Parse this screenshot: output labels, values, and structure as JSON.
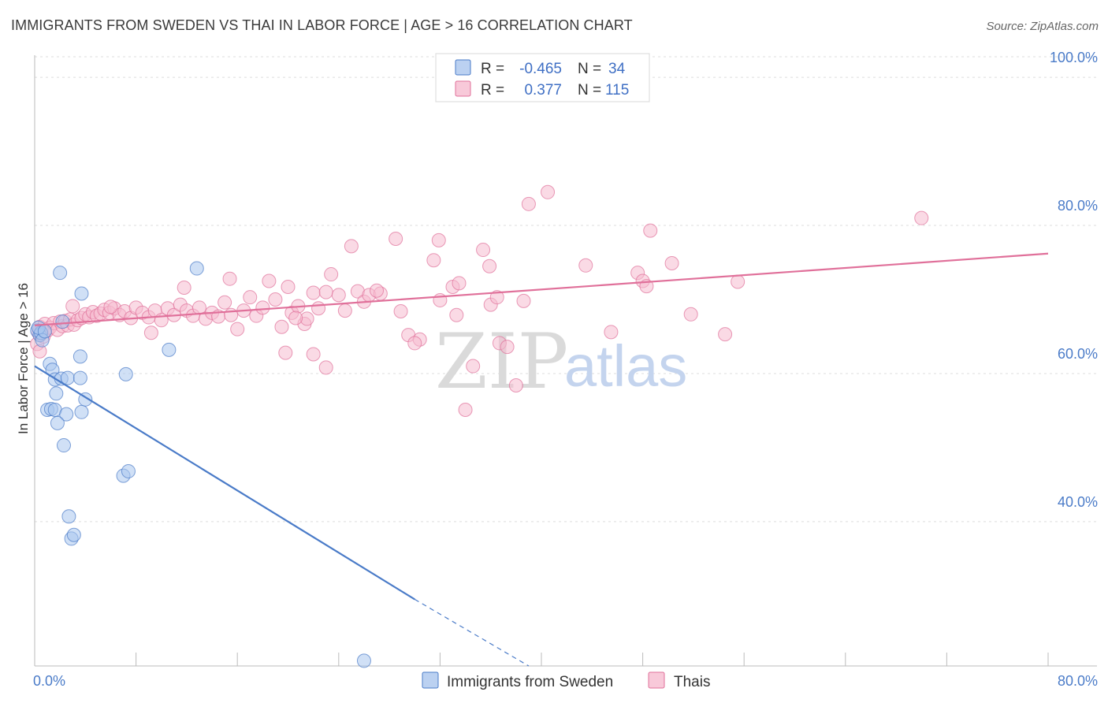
{
  "title": "IMMIGRANTS FROM SWEDEN VS THAI IN LABOR FORCE | AGE > 16 CORRELATION CHART",
  "source": "Source: ZipAtlas.com",
  "watermark": {
    "zip": "ZIP",
    "atlas": "atlas"
  },
  "colors": {
    "sweden": "#4a7bc8",
    "thai": "#e0709a",
    "sweden_fill": "#aac6ee",
    "thai_fill": "#f6bcd0",
    "tick": "#4a7bc8"
  },
  "chart_data": {
    "type": "scatter",
    "xlabel": "",
    "ylabel": "In Labor Force | Age > 16",
    "xlim": [
      0,
      80
    ],
    "ylim": [
      20.5,
      103
    ],
    "x_ticks": [
      0,
      8,
      16,
      24,
      32,
      40,
      48,
      56,
      64,
      72,
      80
    ],
    "x_tick_labels": {
      "first": "0.0%",
      "last": "80.0%"
    },
    "y_ticks": [
      {
        "value": 40,
        "label": "40.0%"
      },
      {
        "value": 60,
        "label": "60.0%"
      },
      {
        "value": 80,
        "label": "80.0%"
      },
      {
        "value": 100,
        "label": "100.0%"
      }
    ],
    "grid": true,
    "legend_position": "top-center",
    "legend": [
      {
        "r_label": "R =",
        "r_value": "-0.465",
        "n_label": "N =",
        "n_value": "34"
      },
      {
        "r_label": "R =",
        "r_value": "0.377",
        "n_label": "N =",
        "n_value": "115"
      }
    ],
    "series": [
      {
        "name": "Immigrants from Sweden",
        "color": "#4a7bc8",
        "trend": {
          "x0": 0,
          "y0": 61,
          "x1": 30,
          "y1": 29.5,
          "dash_x1": 39,
          "dash_y1": 20.5
        },
        "points": [
          [
            0.2,
            65.8
          ],
          [
            0.4,
            65.2
          ],
          [
            0.5,
            65.5
          ],
          [
            0.6,
            64.5
          ],
          [
            0.3,
            66.2
          ],
          [
            0.8,
            65.7
          ],
          [
            1.2,
            61.3
          ],
          [
            1.4,
            60.5
          ],
          [
            1.7,
            57.3
          ],
          [
            1.6,
            59.2
          ],
          [
            2.1,
            59.3
          ],
          [
            1.0,
            55.1
          ],
          [
            1.3,
            55.2
          ],
          [
            1.6,
            55.1
          ],
          [
            2.5,
            54.5
          ],
          [
            3.7,
            54.8
          ],
          [
            2.6,
            59.4
          ],
          [
            4.0,
            56.5
          ],
          [
            3.6,
            62.3
          ],
          [
            3.6,
            59.4
          ],
          [
            3.7,
            70.8
          ],
          [
            2.0,
            73.6
          ],
          [
            12.8,
            74.2
          ],
          [
            2.2,
            67.0
          ],
          [
            1.8,
            53.3
          ],
          [
            2.3,
            50.3
          ],
          [
            7.2,
            59.9
          ],
          [
            10.6,
            63.2
          ],
          [
            7.0,
            46.2
          ],
          [
            7.4,
            46.8
          ],
          [
            2.7,
            40.7
          ],
          [
            2.9,
            37.7
          ],
          [
            3.1,
            38.2
          ],
          [
            26.0,
            21.2
          ]
        ]
      },
      {
        "name": "Thais",
        "color": "#e0709a",
        "trend": {
          "x0": 0,
          "y0": 66.5,
          "x1": 80,
          "y1": 76.2
        },
        "points": [
          [
            0.2,
            64.0
          ],
          [
            0.3,
            65.5
          ],
          [
            0.4,
            66.3
          ],
          [
            0.5,
            65.3
          ],
          [
            0.6,
            66.0
          ],
          [
            0.7,
            65.0
          ],
          [
            0.8,
            66.7
          ],
          [
            1.0,
            65.8
          ],
          [
            1.2,
            66.2
          ],
          [
            1.5,
            66.8
          ],
          [
            1.8,
            65.9
          ],
          [
            2.0,
            67.0
          ],
          [
            2.2,
            66.4
          ],
          [
            2.4,
            67.1
          ],
          [
            2.6,
            66.5
          ],
          [
            2.8,
            67.3
          ],
          [
            3.1,
            66.6
          ],
          [
            3.4,
            67.2
          ],
          [
            3.7,
            67.5
          ],
          [
            4.0,
            68.0
          ],
          [
            4.3,
            67.6
          ],
          [
            4.6,
            68.3
          ],
          [
            4.9,
            67.8
          ],
          [
            5.2,
            68.1
          ],
          [
            5.5,
            68.6
          ],
          [
            5.9,
            68.2
          ],
          [
            6.3,
            68.8
          ],
          [
            6.7,
            67.9
          ],
          [
            7.1,
            68.4
          ],
          [
            7.6,
            67.5
          ],
          [
            8.0,
            68.9
          ],
          [
            8.5,
            68.2
          ],
          [
            9.0,
            67.6
          ],
          [
            9.5,
            68.5
          ],
          [
            10.0,
            67.2
          ],
          [
            10.5,
            68.8
          ],
          [
            11.0,
            67.9
          ],
          [
            11.5,
            69.3
          ],
          [
            12.0,
            68.5
          ],
          [
            12.5,
            67.8
          ],
          [
            13.0,
            68.9
          ],
          [
            13.5,
            67.4
          ],
          [
            14.0,
            68.2
          ],
          [
            14.5,
            67.7
          ],
          [
            15.0,
            69.6
          ],
          [
            15.5,
            67.9
          ],
          [
            16.0,
            66.0
          ],
          [
            16.5,
            68.5
          ],
          [
            17.0,
            70.3
          ],
          [
            17.5,
            67.8
          ],
          [
            18.0,
            68.9
          ],
          [
            18.5,
            72.5
          ],
          [
            19.0,
            70.0
          ],
          [
            19.5,
            66.3
          ],
          [
            20.0,
            71.7
          ],
          [
            20.3,
            68.2
          ],
          [
            20.8,
            69.1
          ],
          [
            21.3,
            66.7
          ],
          [
            21.5,
            67.4
          ],
          [
            22.0,
            70.9
          ],
          [
            22.4,
            68.8
          ],
          [
            23.0,
            71.0
          ],
          [
            23.4,
            73.4
          ],
          [
            24.0,
            70.6
          ],
          [
            24.5,
            68.5
          ],
          [
            25.0,
            77.2
          ],
          [
            25.5,
            71.1
          ],
          [
            26.0,
            69.7
          ],
          [
            26.4,
            70.6
          ],
          [
            27.3,
            70.8
          ],
          [
            28.5,
            78.2
          ],
          [
            28.9,
            68.4
          ],
          [
            29.5,
            65.2
          ],
          [
            30.4,
            64.6
          ],
          [
            31.5,
            75.3
          ],
          [
            31.9,
            78.0
          ],
          [
            32.0,
            69.9
          ],
          [
            33.0,
            71.7
          ],
          [
            33.3,
            67.9
          ],
          [
            34.0,
            55.1
          ],
          [
            34.6,
            61.0
          ],
          [
            35.4,
            76.7
          ],
          [
            35.9,
            74.5
          ],
          [
            36.0,
            69.3
          ],
          [
            36.5,
            70.3
          ],
          [
            36.7,
            64.1
          ],
          [
            37.3,
            63.6
          ],
          [
            38.0,
            58.4
          ],
          [
            38.6,
            69.8
          ],
          [
            39.0,
            82.9
          ],
          [
            40.5,
            84.5
          ],
          [
            43.5,
            74.6
          ],
          [
            45.5,
            65.6
          ],
          [
            47.6,
            73.6
          ],
          [
            48.0,
            72.5
          ],
          [
            48.3,
            71.8
          ],
          [
            48.6,
            79.3
          ],
          [
            50.3,
            74.9
          ],
          [
            51.8,
            68.0
          ],
          [
            54.5,
            65.3
          ],
          [
            55.5,
            72.4
          ],
          [
            70.0,
            81.0
          ],
          [
            19.8,
            62.8
          ],
          [
            22.0,
            62.6
          ],
          [
            23.0,
            60.8
          ],
          [
            30.0,
            64.1
          ],
          [
            33.5,
            72.2
          ],
          [
            27.0,
            71.2
          ],
          [
            11.8,
            71.6
          ],
          [
            15.4,
            72.8
          ],
          [
            9.2,
            65.5
          ],
          [
            6.0,
            69.0
          ],
          [
            3.0,
            69.1
          ],
          [
            0.4,
            63.0
          ],
          [
            20.6,
            67.5
          ]
        ]
      }
    ]
  }
}
